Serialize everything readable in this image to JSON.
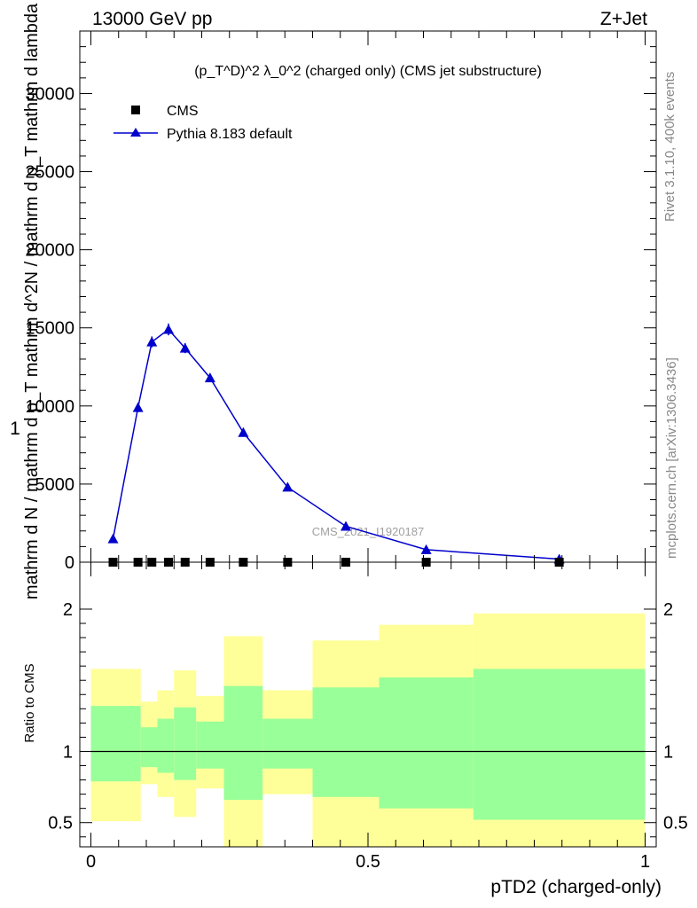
{
  "header": {
    "energy_label": "13000 GeV pp",
    "process_label": "Z+Jet",
    "plot_title": "(p_T^D)^2 λ_0^2 (charged only) (CMS jet substructure)",
    "analysis_id": "CMS_2021_I1920187"
  },
  "side_labels": {
    "rivet": "Rivet 3.1.10,  400k events",
    "mcplots": "mcplots.cern.ch [arXiv:1306.3436]"
  },
  "legend": {
    "data_label": "CMS",
    "mc_label": "Pythia 8.183 default"
  },
  "colors": {
    "mc_line": "#0000cc",
    "band_inner": "#99ff99",
    "band_outer": "#ffff99",
    "data_marker": "#000000"
  },
  "chart_data": [
    {
      "type": "line",
      "title": "(p_T^D)^2 λ_0^2 (charged only) (CMS jet substructure)",
      "ylabel": "1 / mathrm d N / mathrm d p_T  mathrm d^2N / mathrm d p_T  mathrm d lambda",
      "xlim": [
        -0.02,
        1.02
      ],
      "ylim": [
        0,
        34000
      ],
      "yticks": [
        0,
        5000,
        10000,
        15000,
        20000,
        25000,
        30000
      ],
      "ytick_labels": [
        "0",
        "5000",
        "10000",
        "15000",
        "20000",
        "25000",
        "30000"
      ],
      "series": [
        {
          "name": "CMS",
          "marker": "square",
          "x": [
            0.04,
            0.085,
            0.11,
            0.14,
            0.17,
            0.215,
            0.275,
            0.355,
            0.46,
            0.605,
            0.845
          ],
          "y": [
            0,
            0,
            0,
            0,
            0,
            0,
            0,
            0,
            0,
            0,
            0
          ]
        },
        {
          "name": "Pythia 8.183 default",
          "marker": "triangle",
          "x": [
            0.04,
            0.085,
            0.11,
            0.14,
            0.17,
            0.215,
            0.275,
            0.355,
            0.46,
            0.605,
            0.845
          ],
          "y": [
            1500,
            9900,
            14100,
            14900,
            13700,
            11800,
            8300,
            4800,
            2300,
            800,
            200
          ],
          "yerr": [
            120,
            300,
            350,
            380,
            320,
            260,
            200,
            150,
            100,
            60,
            40
          ]
        }
      ]
    },
    {
      "type": "area",
      "xlabel": "pTD2 (charged-only)",
      "ylabel": "Ratio to CMS",
      "xlim": [
        -0.02,
        1.02
      ],
      "ylim": [
        0.33,
        2.33
      ],
      "xticks": [
        0,
        0.5,
        1
      ],
      "xtick_labels": [
        "0",
        "0.5",
        "1"
      ],
      "yticks": [
        0.5,
        1,
        2
      ],
      "ytick_labels": [
        "0.5",
        "1",
        "2"
      ],
      "reference_line": 1,
      "bins": [
        {
          "lo": 0.0,
          "hi": 0.09,
          "inner": [
            0.79,
            1.32
          ],
          "outer": [
            0.51,
            1.58
          ]
        },
        {
          "lo": 0.09,
          "hi": 0.12,
          "inner": [
            0.89,
            1.17
          ],
          "outer": [
            0.77,
            1.35
          ]
        },
        {
          "lo": 0.12,
          "hi": 0.15,
          "inner": [
            0.85,
            1.23
          ],
          "outer": [
            0.68,
            1.43
          ]
        },
        {
          "lo": 0.15,
          "hi": 0.19,
          "inner": [
            0.8,
            1.31
          ],
          "outer": [
            0.54,
            1.57
          ]
        },
        {
          "lo": 0.19,
          "hi": 0.24,
          "inner": [
            0.88,
            1.21
          ],
          "outer": [
            0.74,
            1.39
          ]
        },
        {
          "lo": 0.24,
          "hi": 0.31,
          "inner": [
            0.66,
            1.46
          ],
          "outer": [
            0.33,
            1.81
          ]
        },
        {
          "lo": 0.31,
          "hi": 0.4,
          "inner": [
            0.88,
            1.23
          ],
          "outer": [
            0.7,
            1.43
          ]
        },
        {
          "lo": 0.4,
          "hi": 0.52,
          "inner": [
            0.68,
            1.45
          ],
          "outer": [
            0.33,
            1.78
          ]
        },
        {
          "lo": 0.52,
          "hi": 0.69,
          "inner": [
            0.6,
            1.52
          ],
          "outer": [
            0.33,
            1.89
          ]
        },
        {
          "lo": 0.69,
          "hi": 1.0,
          "inner": [
            0.52,
            1.58
          ],
          "outer": [
            0.33,
            1.97
          ]
        }
      ]
    }
  ]
}
